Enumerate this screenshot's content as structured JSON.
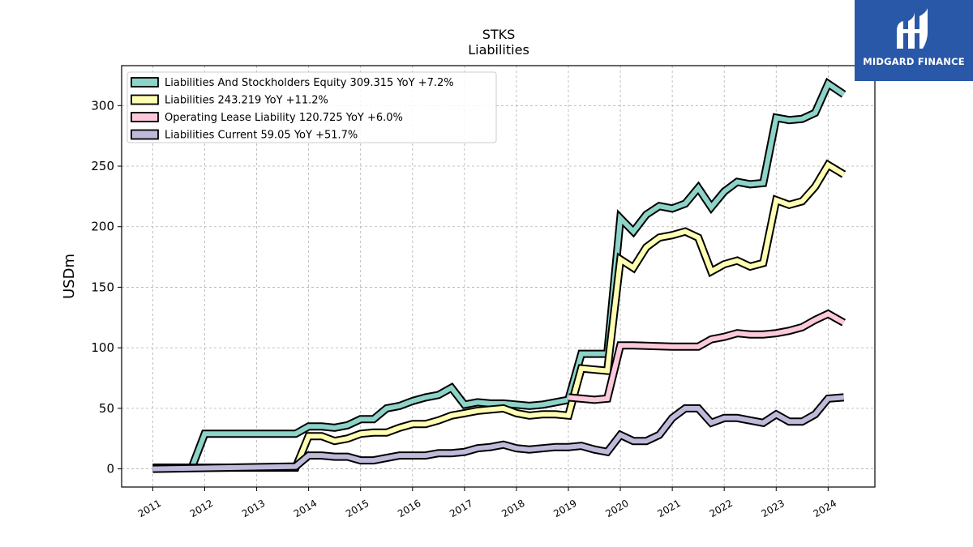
{
  "chart_data": {
    "type": "line",
    "title": "STKS",
    "subtitle": "Liabilities",
    "xlabel": "",
    "ylabel": "USDm",
    "xlim": [
      2010.4,
      2024.9
    ],
    "ylim": [
      -15,
      333
    ],
    "x_ticks": [
      2011,
      2012,
      2013,
      2014,
      2015,
      2016,
      2017,
      2018,
      2019,
      2020,
      2021,
      2022,
      2023,
      2024
    ],
    "y_ticks": [
      0,
      50,
      100,
      150,
      200,
      250,
      300
    ],
    "grid": true,
    "legend_position": "top-left",
    "series": [
      {
        "name": "Liabilities And Stockholders Equity  309.315 YoY +7.2%",
        "color": "#8dd3c7",
        "points": [
          [
            2011.0,
            1
          ],
          [
            2011.75,
            1
          ],
          [
            2012.0,
            29
          ],
          [
            2013.75,
            29
          ],
          [
            2014.0,
            35
          ],
          [
            2014.25,
            35
          ],
          [
            2014.5,
            34
          ],
          [
            2014.75,
            36
          ],
          [
            2015.0,
            41
          ],
          [
            2015.25,
            41
          ],
          [
            2015.5,
            50
          ],
          [
            2015.75,
            52
          ],
          [
            2016.0,
            56
          ],
          [
            2016.25,
            59
          ],
          [
            2016.5,
            61
          ],
          [
            2016.75,
            67
          ],
          [
            2017.0,
            53
          ],
          [
            2017.25,
            55
          ],
          [
            2017.5,
            54
          ],
          [
            2017.75,
            54
          ],
          [
            2018.0,
            53
          ],
          [
            2018.25,
            52
          ],
          [
            2018.5,
            53
          ],
          [
            2018.75,
            55
          ],
          [
            2019.0,
            57
          ],
          [
            2019.25,
            95
          ],
          [
            2019.75,
            95
          ],
          [
            2020.0,
            207
          ],
          [
            2020.25,
            196
          ],
          [
            2020.5,
            210
          ],
          [
            2020.75,
            217
          ],
          [
            2021.0,
            215
          ],
          [
            2021.25,
            219
          ],
          [
            2021.5,
            232
          ],
          [
            2021.75,
            216
          ],
          [
            2022.0,
            229
          ],
          [
            2022.25,
            237
          ],
          [
            2022.5,
            235
          ],
          [
            2022.75,
            236
          ],
          [
            2023.0,
            290
          ],
          [
            2023.25,
            288
          ],
          [
            2023.5,
            289
          ],
          [
            2023.75,
            294
          ],
          [
            2024.0,
            318
          ],
          [
            2024.3,
            309.315
          ]
        ]
      },
      {
        "name": "Liabilities  243.219 YoY +11.2%",
        "color": "#ffffb3",
        "points": [
          [
            2011.0,
            1
          ],
          [
            2013.75,
            1
          ],
          [
            2014.0,
            27
          ],
          [
            2014.25,
            27
          ],
          [
            2014.5,
            23
          ],
          [
            2014.75,
            25
          ],
          [
            2015.0,
            29
          ],
          [
            2015.25,
            30
          ],
          [
            2015.5,
            30
          ],
          [
            2015.75,
            34
          ],
          [
            2016.0,
            37
          ],
          [
            2016.25,
            37
          ],
          [
            2016.5,
            40
          ],
          [
            2016.75,
            44
          ],
          [
            2017.0,
            46
          ],
          [
            2017.25,
            48
          ],
          [
            2017.5,
            49
          ],
          [
            2017.75,
            50
          ],
          [
            2018.0,
            46
          ],
          [
            2018.25,
            44
          ],
          [
            2018.5,
            45
          ],
          [
            2018.75,
            45
          ],
          [
            2019.0,
            44
          ],
          [
            2019.25,
            83
          ],
          [
            2019.75,
            81
          ],
          [
            2020.0,
            173
          ],
          [
            2020.25,
            166
          ],
          [
            2020.5,
            183
          ],
          [
            2020.75,
            191
          ],
          [
            2021.0,
            193
          ],
          [
            2021.25,
            196
          ],
          [
            2021.5,
            191
          ],
          [
            2021.75,
            163
          ],
          [
            2022.0,
            169
          ],
          [
            2022.25,
            172
          ],
          [
            2022.5,
            167
          ],
          [
            2022.75,
            170
          ],
          [
            2023.0,
            222
          ],
          [
            2023.25,
            218
          ],
          [
            2023.5,
            221
          ],
          [
            2023.75,
            233
          ],
          [
            2024.0,
            251
          ],
          [
            2024.3,
            243.219
          ]
        ]
      },
      {
        "name": "Operating Lease Liability  120.725 YoY +6.0%",
        "color": "#fcc8dc",
        "points": [
          [
            2019.0,
            59
          ],
          [
            2019.25,
            58
          ],
          [
            2019.5,
            57
          ],
          [
            2019.75,
            58
          ],
          [
            2020.0,
            102
          ],
          [
            2020.25,
            102
          ],
          [
            2021.0,
            101
          ],
          [
            2021.5,
            101
          ],
          [
            2021.75,
            107
          ],
          [
            2022.0,
            109
          ],
          [
            2022.25,
            112
          ],
          [
            2022.5,
            111
          ],
          [
            2022.75,
            111
          ],
          [
            2023.0,
            112
          ],
          [
            2023.25,
            114
          ],
          [
            2023.5,
            117
          ],
          [
            2023.75,
            123
          ],
          [
            2024.0,
            128
          ],
          [
            2024.3,
            120.725
          ]
        ]
      },
      {
        "name": "Liabilities Current  59.05 YoY +51.7%",
        "color": "#bebada",
        "points": [
          [
            2011.0,
            0
          ],
          [
            2013.75,
            2
          ],
          [
            2014.0,
            11
          ],
          [
            2014.25,
            11
          ],
          [
            2014.5,
            10
          ],
          [
            2014.75,
            10
          ],
          [
            2015.0,
            7
          ],
          [
            2015.25,
            7
          ],
          [
            2015.5,
            9
          ],
          [
            2015.75,
            11
          ],
          [
            2016.0,
            11
          ],
          [
            2016.25,
            11
          ],
          [
            2016.5,
            13
          ],
          [
            2016.75,
            13
          ],
          [
            2017.0,
            14
          ],
          [
            2017.25,
            17
          ],
          [
            2017.5,
            18
          ],
          [
            2017.75,
            20
          ],
          [
            2018.0,
            17
          ],
          [
            2018.25,
            16
          ],
          [
            2018.5,
            17
          ],
          [
            2018.75,
            18
          ],
          [
            2019.0,
            18
          ],
          [
            2019.25,
            19
          ],
          [
            2019.5,
            16
          ],
          [
            2019.75,
            14
          ],
          [
            2020.0,
            28
          ],
          [
            2020.25,
            23
          ],
          [
            2020.5,
            23
          ],
          [
            2020.75,
            28
          ],
          [
            2021.0,
            42
          ],
          [
            2021.25,
            50
          ],
          [
            2021.5,
            50
          ],
          [
            2021.75,
            38
          ],
          [
            2022.0,
            42
          ],
          [
            2022.25,
            42
          ],
          [
            2022.5,
            40
          ],
          [
            2022.75,
            38
          ],
          [
            2023.0,
            45
          ],
          [
            2023.25,
            39
          ],
          [
            2023.5,
            39
          ],
          [
            2023.75,
            45
          ],
          [
            2024.0,
            58
          ],
          [
            2024.3,
            59.05
          ]
        ]
      }
    ]
  },
  "logo": {
    "text": "MIDGARD FINANCE"
  }
}
